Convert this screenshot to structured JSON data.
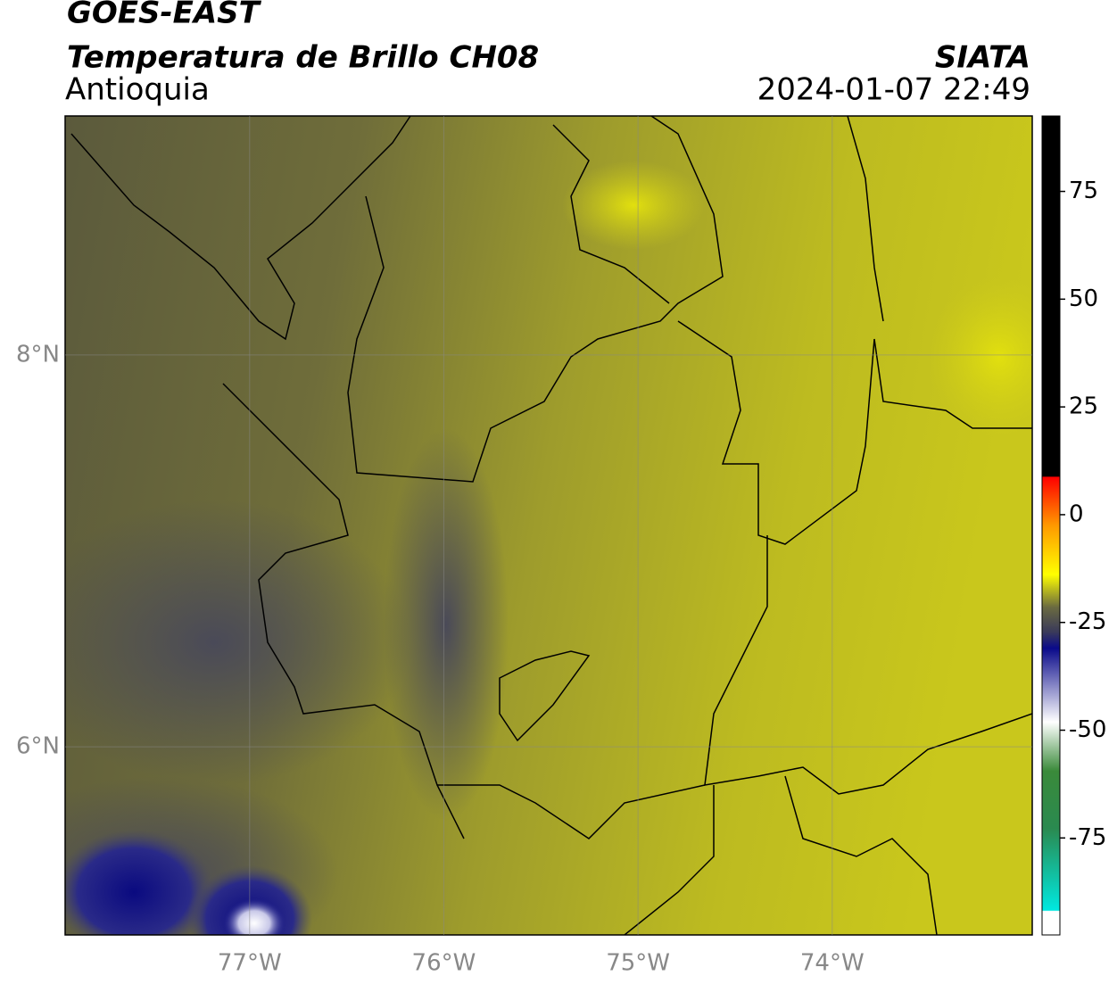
{
  "header": {
    "title": "GOES-EAST",
    "subtitle": "Temperatura de Brillo CH08",
    "region": "Antioquia",
    "source": "SIATA",
    "timestamp": "2024-01-07 22:49"
  },
  "map": {
    "xlim": [
      -77.95,
      -72.97
    ],
    "ylim": [
      5.04,
      9.22
    ],
    "xticks": [
      {
        "value": -77,
        "label": "77°W"
      },
      {
        "value": -76,
        "label": "76°W"
      },
      {
        "value": -75,
        "label": "75°W"
      },
      {
        "value": -74,
        "label": "74°W"
      }
    ],
    "yticks": [
      {
        "value": 8,
        "label": "8°N"
      },
      {
        "value": 6,
        "label": "6°N"
      }
    ],
    "grid": true
  },
  "colorbar": {
    "lim": [
      -97.5,
      92.5
    ],
    "ticks": [
      75,
      50,
      25,
      0,
      -25,
      -50,
      -75
    ]
  }
}
